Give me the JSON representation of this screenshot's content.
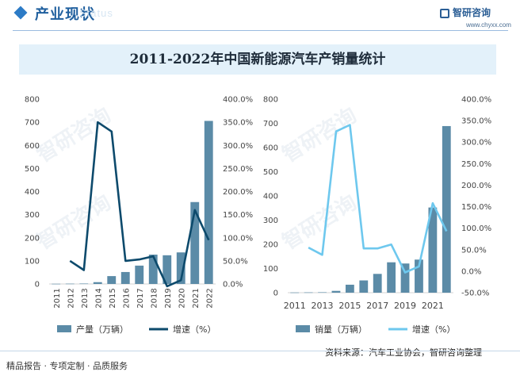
{
  "header": {
    "section_title": "产业现状",
    "ghost_text": "Status",
    "logo_name": "智研咨询",
    "site": "www.chyxx.com"
  },
  "title": "2011-2022年中国新能源汽车产销量统计",
  "watermark": "智研咨询",
  "footer": {
    "left": "精品报告 · 专项定制 · 品质服务",
    "source": "资料来源：汽车工业协会，智研咨询整理"
  },
  "colors": {
    "bar": "#5b8ba7",
    "line_left": "#0d4a6c",
    "line_right": "#6ec8ee",
    "header_accent": "#2c7bc6"
  },
  "chart_data": [
    {
      "type": "bar",
      "categories": [
        "2011",
        "2012",
        "2013",
        "2014",
        "2015",
        "2016",
        "2017",
        "2018",
        "2019",
        "2020",
        "2021",
        "2022"
      ],
      "series": [
        {
          "name": "产量（万辆）",
          "type": "bar",
          "axis": "left",
          "values": [
            0.8,
            1.3,
            1.8,
            7.8,
            34,
            51.7,
            79.4,
            127,
            124.2,
            136.6,
            354.5,
            705.8
          ]
        },
        {
          "name": "增速（%）",
          "type": "line",
          "axis": "right",
          "values": [
            null,
            50,
            30,
            350,
            330,
            50,
            53,
            60,
            -5,
            8,
            160,
            95
          ]
        }
      ],
      "ylim": [
        0,
        800
      ],
      "yticks": [
        "0",
        "100",
        "200",
        "300",
        "400",
        "500",
        "600",
        "700",
        "800"
      ],
      "y2lim": [
        0,
        400
      ],
      "y2ticks": [
        "0.0%",
        "50.0%",
        "100.0%",
        "150.0%",
        "200.0%",
        "250.0%",
        "300.0%",
        "350.0%",
        "400.0%"
      ],
      "legend": "bottom"
    },
    {
      "type": "bar",
      "categories": [
        "2011",
        "2012",
        "2013",
        "2014",
        "2015",
        "2016",
        "2017",
        "2018",
        "2019",
        "2020",
        "2021",
        "2022"
      ],
      "xtick_labels": [
        "2011",
        "2013",
        "2015",
        "2017",
        "2019",
        "2021"
      ],
      "series": [
        {
          "name": "销量（万辆）",
          "type": "bar",
          "axis": "left",
          "values": [
            0.8,
            1.3,
            1.8,
            7.5,
            33,
            50.7,
            77.7,
            125.6,
            120.6,
            136.7,
            352.1,
            688.7
          ]
        },
        {
          "name": "增速（%）",
          "type": "line",
          "axis": "right",
          "values": [
            null,
            55,
            38,
            325,
            340,
            53,
            53,
            62,
            -3,
            11,
            158,
            93
          ]
        }
      ],
      "ylim": [
        0,
        800
      ],
      "yticks": [
        "0",
        "100",
        "200",
        "300",
        "400",
        "500",
        "600",
        "700",
        "800"
      ],
      "y2lim": [
        -50,
        400
      ],
      "y2ticks": [
        "-50.0%",
        "0.0%",
        "50.0%",
        "100.0%",
        "150.0%",
        "200.0%",
        "250.0%",
        "300.0%",
        "350.0%",
        "400.0%"
      ],
      "legend": "bottom"
    }
  ]
}
